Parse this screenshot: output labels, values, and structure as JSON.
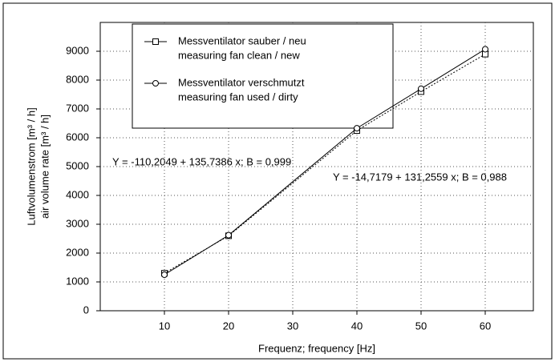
{
  "chart_data": {
    "type": "line",
    "x_label": "Frequenz;  frequency [Hz]",
    "y_label": [
      "Luftvolumenstrom [m³ / h]",
      "air volume rate [m³ / h]"
    ],
    "x": [
      10,
      20,
      40,
      50,
      60
    ],
    "series": [
      {
        "name": [
          "Messventilator sauber / neu",
          "measuring fan clean / new"
        ],
        "color": "#000000",
        "marker": "square",
        "dash": "dotted",
        "values": [
          1300,
          2600,
          6250,
          7600,
          8900
        ]
      },
      {
        "name": [
          "Messventilator verschmutzt",
          "measuring fan used / dirty"
        ],
        "color": "#000000",
        "marker": "circle",
        "dash": "solid",
        "values": [
          1250,
          2620,
          6330,
          7700,
          9070
        ]
      }
    ],
    "annotations": [
      "Y = -110,2049 + 135,7386 x; B = 0,999",
      "Y = -14,7179 + 131,2559 x; B = 0,988"
    ],
    "xlim": [
      0,
      67.5
    ],
    "xticks": [
      10,
      20,
      30,
      40,
      50,
      60
    ],
    "ylim": [
      0,
      10000
    ],
    "yticks": [
      0,
      1000,
      2000,
      3000,
      4000,
      5000,
      6000,
      7000,
      8000,
      9000
    ],
    "grid": true
  }
}
